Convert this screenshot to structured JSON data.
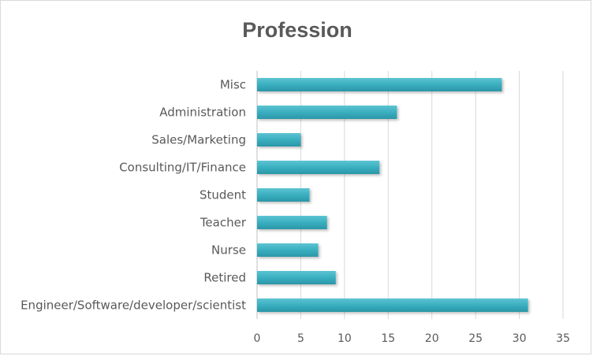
{
  "chart_data": {
    "type": "bar",
    "orientation": "horizontal",
    "title": "Profession",
    "xlabel": "",
    "ylabel": "",
    "categories": [
      "Engineer/Software/developer/scientist",
      "Retired",
      "Nurse",
      "Teacher",
      "Student",
      "Consulting/IT/Finance",
      "Sales/Marketing",
      "Administration",
      "Misc"
    ],
    "values": [
      31,
      9,
      7,
      8,
      6,
      14,
      5,
      16,
      28
    ],
    "xlim": [
      0,
      35
    ],
    "xticks": [
      0,
      5,
      10,
      15,
      20,
      25,
      30,
      35
    ],
    "grid": true,
    "legend": "none",
    "bar_color": "#3aafc0"
  }
}
